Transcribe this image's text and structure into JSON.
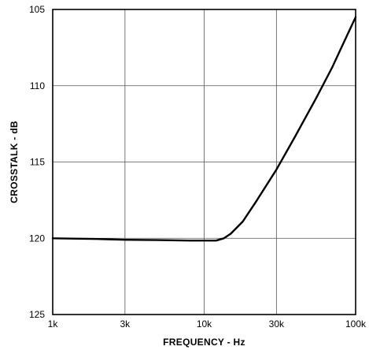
{
  "chart_data": {
    "type": "line",
    "title": "",
    "xlabel": "FREQUENCY - Hz",
    "ylabel": "CROSSTALK - dB",
    "x_scale": "log",
    "x_ticks": [
      1000,
      3000,
      10000,
      30000,
      100000
    ],
    "x_tick_labels": [
      "1k",
      "3k",
      "10k",
      "30k",
      "100k"
    ],
    "xlim": [
      1000,
      100000
    ],
    "y_ticks": [
      105,
      110,
      115,
      120,
      125
    ],
    "y_tick_labels": [
      "105",
      "110",
      "115",
      "120",
      "125"
    ],
    "ylim": [
      105,
      125
    ],
    "y_inverted": true,
    "grid": true,
    "series": [
      {
        "name": "",
        "color": "#000000",
        "x": [
          1000,
          2000,
          3000,
          5000,
          8000,
          10000,
          12000,
          13500,
          15000,
          18000,
          22000,
          30000,
          40000,
          55000,
          70000,
          85000,
          100000
        ],
        "y": [
          120.0,
          120.05,
          120.1,
          120.12,
          120.15,
          120.15,
          120.15,
          120.0,
          119.7,
          118.9,
          117.6,
          115.5,
          113.3,
          110.8,
          108.8,
          107.0,
          105.5
        ]
      }
    ]
  }
}
